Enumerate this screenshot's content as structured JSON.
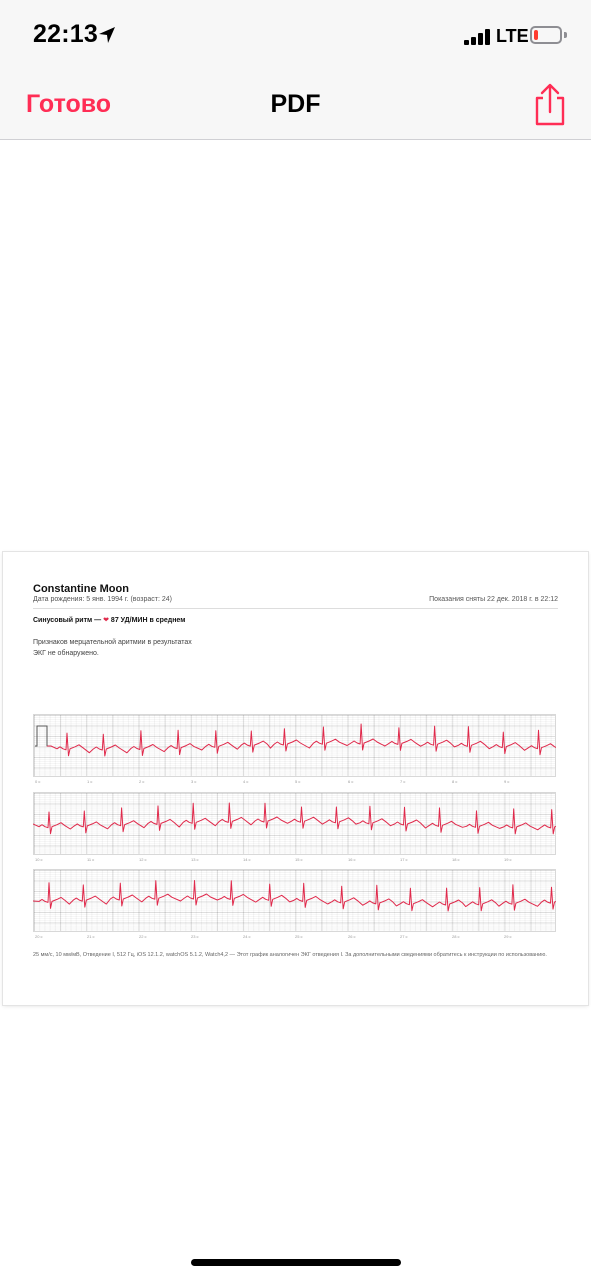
{
  "status_bar": {
    "time": "22:13",
    "network": "LTE",
    "battery_level": 0.18,
    "icons": [
      "location-arrow-icon",
      "cellular-signal-icon",
      "battery-icon"
    ]
  },
  "nav": {
    "done_label": "Готово",
    "title": "PDF",
    "share_icon": "share-icon"
  },
  "document": {
    "patient_name": "Constantine Moon",
    "birth_date_line": "Дата рождения: 5 янв. 1994 г. (возраст: 24)",
    "recorded_line": "Показания сняты 22 дек. 2018 г. в 22:12",
    "rhythm_prefix": "Синусовый ритм — ",
    "bpm_text": "87 УД/МИН в среднем",
    "description": "Признаков мерцательной аритмии в результатах ЭКГ не обнаружено.",
    "footer": "25 мм/с, 10 мм/мВ, Отведение I, 512 Гц, iOS 12.1.2, watchOS 5.1.2, Watch4,2 — Этот график аналогичен ЭКГ отведения I. За дополнительными сведениями обратитесь к инструкции по использованию.",
    "strips": [
      {
        "ticks": [
          "0 с",
          "1 с",
          "2 с",
          "3 с",
          "4 с",
          "5 с",
          "6 с",
          "7 с",
          "8 с",
          "9 с"
        ]
      },
      {
        "ticks": [
          "10 с",
          "11 с",
          "12 с",
          "13 с",
          "14 с",
          "15 с",
          "16 с",
          "17 с",
          "18 с",
          "19 с"
        ]
      },
      {
        "ticks": [
          "20 с",
          "21 с",
          "22 с",
          "23 с",
          "24 с",
          "25 с",
          "26 с",
          "27 с",
          "28 с",
          "29 с"
        ]
      }
    ],
    "trace_color": "#e0294b"
  }
}
